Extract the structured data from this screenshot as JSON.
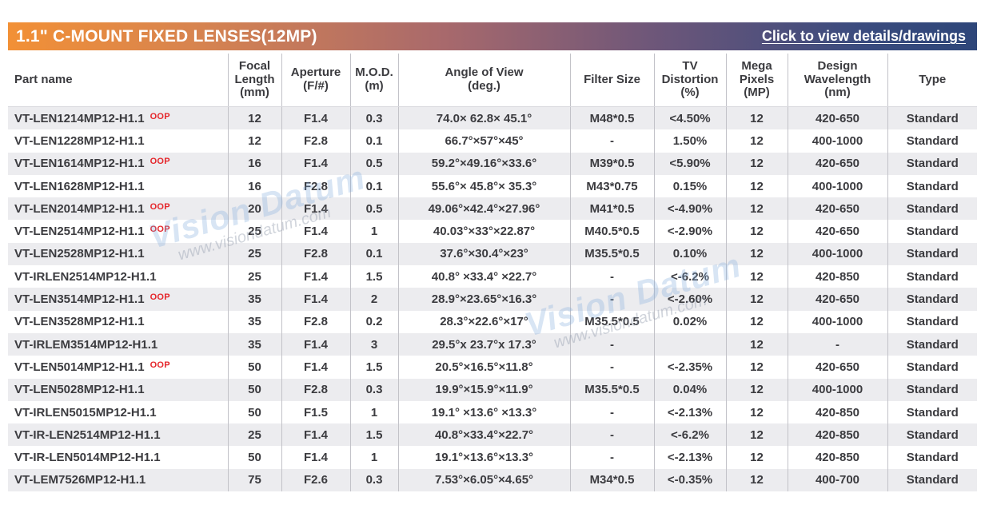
{
  "banner": {
    "title": "1.1\" C-MOUNT FIXED LENSES(12MP)",
    "link": "Click to view details/drawings"
  },
  "colors": {
    "banner_gradient_start": "#F29036",
    "banner_gradient_end": "#2E4679",
    "oop_red": "#E5262B",
    "stripe_gray": "#ECECEF",
    "text_dark": "#3B3B3F"
  },
  "watermark": {
    "brand": "Vision Datum",
    "url": "www.visiondatum.com"
  },
  "table": {
    "oop_label": "OOP",
    "columns": [
      {
        "key": "part",
        "label": "Part name"
      },
      {
        "key": "focal",
        "label": "Focal\nLength\n(mm)"
      },
      {
        "key": "aperture",
        "label": "Aperture\n(F/#)"
      },
      {
        "key": "mod",
        "label": "M.O.D.\n(m)"
      },
      {
        "key": "aov",
        "label": "Angle of View\n(deg.)"
      },
      {
        "key": "filter",
        "label": "Filter Size"
      },
      {
        "key": "tv",
        "label": "TV\nDistortion\n(%)"
      },
      {
        "key": "mp",
        "label": "Mega\nPixels\n(MP)"
      },
      {
        "key": "wave",
        "label": "Design\nWavelength\n(nm)"
      },
      {
        "key": "type",
        "label": "Type"
      }
    ],
    "rows": [
      {
        "part": "VT-LEN1214MP12-H1.1",
        "oop": true,
        "focal": "12",
        "aperture": "F1.4",
        "mod": "0.3",
        "aov": "74.0× 62.8× 45.1°",
        "filter": "M48*0.5",
        "tv": "<4.50%",
        "mp": "12",
        "wave": "420-650",
        "type": "Standard"
      },
      {
        "part": "VT-LEN1228MP12-H1.1",
        "oop": false,
        "focal": "12",
        "aperture": "F2.8",
        "mod": "0.1",
        "aov": "66.7°×57°×45°",
        "filter": "-",
        "tv": "1.50%",
        "mp": "12",
        "wave": "400-1000",
        "type": "Standard"
      },
      {
        "part": "VT-LEN1614MP12-H1.1",
        "oop": true,
        "focal": "16",
        "aperture": "F1.4",
        "mod": "0.5",
        "aov": "59.2°×49.16°×33.6°",
        "filter": "M39*0.5",
        "tv": "<5.90%",
        "mp": "12",
        "wave": "420-650",
        "type": "Standard"
      },
      {
        "part": "VT-LEN1628MP12-H1.1",
        "oop": false,
        "focal": "16",
        "aperture": "F2.8",
        "mod": "0.1",
        "aov": "55.6°× 45.8°× 35.3°",
        "filter": "M43*0.75",
        "tv": "0.15%",
        "mp": "12",
        "wave": "400-1000",
        "type": "Standard"
      },
      {
        "part": "VT-LEN2014MP12-H1.1",
        "oop": true,
        "focal": "20",
        "aperture": "F1.4",
        "mod": "0.5",
        "aov": "49.06°×42.4°×27.96°",
        "filter": "M41*0.5",
        "tv": "<-4.90%",
        "mp": "12",
        "wave": "420-650",
        "type": "Standard"
      },
      {
        "part": "VT-LEN2514MP12-H1.1",
        "oop": true,
        "focal": "25",
        "aperture": "F1.4",
        "mod": "1",
        "aov": "40.03°×33°×22.87°",
        "filter": "M40.5*0.5",
        "tv": "<-2.90%",
        "mp": "12",
        "wave": "420-650",
        "type": "Standard"
      },
      {
        "part": "VT-LEN2528MP12-H1.1",
        "oop": false,
        "focal": "25",
        "aperture": "F2.8",
        "mod": "0.1",
        "aov": "37.6°×30.4°×23°",
        "filter": "M35.5*0.5",
        "tv": "0.10%",
        "mp": "12",
        "wave": "400-1000",
        "type": "Standard"
      },
      {
        "part": "VT-IRLEN2514MP12-H1.1",
        "oop": false,
        "focal": "25",
        "aperture": "F1.4",
        "mod": "1.5",
        "aov": "40.8° ×33.4° ×22.7°",
        "filter": "-",
        "tv": "<-6.2%",
        "mp": "12",
        "wave": "420-850",
        "type": "Standard"
      },
      {
        "part": "VT-LEN3514MP12-H1.1",
        "oop": true,
        "focal": "35",
        "aperture": "F1.4",
        "mod": "2",
        "aov": "28.9°×23.65°×16.3°",
        "filter": "-",
        "tv": "<-2.60%",
        "mp": "12",
        "wave": "420-650",
        "type": "Standard"
      },
      {
        "part": "VT-LEN3528MP12-H1.1",
        "oop": false,
        "focal": "35",
        "aperture": "F2.8",
        "mod": "0.2",
        "aov": "28.3°×22.6°×17°",
        "filter": "M35.5*0.5",
        "tv": "0.02%",
        "mp": "12",
        "wave": "400-1000",
        "type": "Standard"
      },
      {
        "part": "VT-IRLEM3514MP12-H1.1",
        "oop": false,
        "focal": "35",
        "aperture": "F1.4",
        "mod": "3",
        "aov": "29.5°x 23.7°x 17.3°",
        "filter": "-",
        "tv": "",
        "mp": "12",
        "wave": "-",
        "type": "Standard"
      },
      {
        "part": "VT-LEN5014MP12-H1.1",
        "oop": true,
        "focal": "50",
        "aperture": "F1.4",
        "mod": "1.5",
        "aov": "20.5°×16.5°×11.8°",
        "filter": "-",
        "tv": "<-2.35%",
        "mp": "12",
        "wave": "420-650",
        "type": "Standard"
      },
      {
        "part": "VT-LEN5028MP12-H1.1",
        "oop": false,
        "focal": "50",
        "aperture": "F2.8",
        "mod": "0.3",
        "aov": "19.9°×15.9°×11.9°",
        "filter": "M35.5*0.5",
        "tv": "0.04%",
        "mp": "12",
        "wave": "400-1000",
        "type": "Standard"
      },
      {
        "part": "VT-IRLEN5015MP12-H1.1",
        "oop": false,
        "focal": "50",
        "aperture": "F1.5",
        "mod": "1",
        "aov": "19.1° ×13.6° ×13.3°",
        "filter": "-",
        "tv": "<-2.13%",
        "mp": "12",
        "wave": "420-850",
        "type": "Standard"
      },
      {
        "part": "VT-IR-LEN2514MP12-H1.1",
        "oop": false,
        "focal": "25",
        "aperture": "F1.4",
        "mod": "1.5",
        "aov": "40.8°×33.4°×22.7°",
        "filter": "-",
        "tv": "<-6.2%",
        "mp": "12",
        "wave": "420-850",
        "type": "Standard"
      },
      {
        "part": "VT-IR-LEN5014MP12-H1.1",
        "oop": false,
        "focal": "50",
        "aperture": "F1.4",
        "mod": "1",
        "aov": "19.1°×13.6°×13.3°",
        "filter": "-",
        "tv": "<-2.13%",
        "mp": "12",
        "wave": "420-850",
        "type": "Standard"
      },
      {
        "part": "VT-LEM7526MP12-H1.1",
        "oop": false,
        "focal": "75",
        "aperture": "F2.6",
        "mod": "0.3",
        "aov": "7.53°×6.05°×4.65°",
        "filter": "M34*0.5",
        "tv": "<-0.35%",
        "mp": "12",
        "wave": "400-700",
        "type": "Standard"
      }
    ]
  }
}
